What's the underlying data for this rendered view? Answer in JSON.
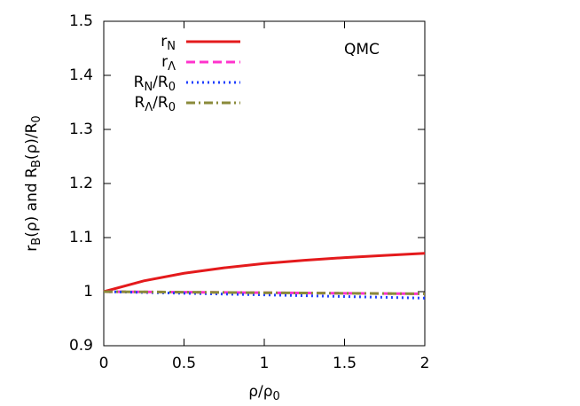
{
  "chart_data": {
    "type": "line",
    "x_label": "ρ/ρ0",
    "y_label": "rB(ρ)  and  RB(ρ)/R0",
    "annotation": "QMC",
    "x": [
      0,
      0.25,
      0.5,
      0.75,
      1,
      1.25,
      1.5,
      1.75,
      2
    ],
    "series": [
      {
        "name": "rN",
        "color": "#e41a1c",
        "dash": "solid",
        "values": [
          1.0,
          1.02,
          1.034,
          1.044,
          1.052,
          1.058,
          1.063,
          1.067,
          1.071
        ]
      },
      {
        "name": "rΛ",
        "color": "#ff33cc",
        "dash": "dashed",
        "values": [
          1.0,
          0.9995,
          0.999,
          0.9985,
          0.998,
          0.9975,
          0.997,
          0.9965,
          0.996
        ]
      },
      {
        "name": "RN/R0",
        "color": "#1f3fff",
        "dash": "dotted",
        "values": [
          1.0,
          0.9985,
          0.997,
          0.9955,
          0.994,
          0.9925,
          0.991,
          0.9895,
          0.988
        ]
      },
      {
        "name": "RΛ/R0",
        "color": "#8a8a3a",
        "dash": "dashdot",
        "values": [
          1.0,
          0.9995,
          0.999,
          0.9985,
          0.998,
          0.9975,
          0.997,
          0.9965,
          0.996
        ]
      }
    ],
    "xlim": [
      0,
      2
    ],
    "xticks": [
      0,
      0.5,
      1,
      1.5,
      2
    ],
    "ylim": [
      0.9,
      1.5
    ],
    "yticks": [
      0.9,
      1,
      1.1,
      1.2,
      1.3,
      1.4,
      1.5
    ],
    "legend": "upper-left"
  }
}
